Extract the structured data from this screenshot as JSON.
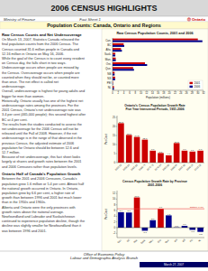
{
  "title": "2006 CENSUS HIGHLIGHTS",
  "subtitles": [
    "Ministry of Finance",
    "Fact Sheet 1",
    "Ⓞ Ontario"
  ],
  "section_title": "Population Counts: Canada, Ontario and Regions",
  "text_sections": [
    {
      "heading": "Raw Census Counts and Net Undercoverage",
      "lines": [
        "On March 13, 2007, Statistics Canada released the",
        "final population counts from the 2006 Census. The",
        "Census counted 31.6 million people in Canada and",
        "12.16 million in Ontario on May 16, 2006.",
        "While the goal of the Census is to count every resident",
        "on Census day, the falls short in two ways.",
        "Undercoverage occurs when people are missed by",
        "the Census. Overcoverage occurs when people are",
        "counted when they should not be, or counted more",
        "than once. The net effect is called net",
        "undercoverage.",
        "Overall, undercoverage is highest for young adults and",
        "bigger for men than women.",
        "Historically, Ontario usually has one of the highest net",
        "undercoverage rates among the provinces. For the",
        "2001 Census, Ontario's net undercoverage rate was",
        "3.4 per cent (465,000 people); this second highest after",
        "BC at 4 per cent.",
        "The results from the studies conducted to assess the",
        "net undercoverage for the 2006 Census will not be",
        "released until the Fall of 2008. However, if the net",
        "undercoverage is in the range of that observed in the",
        "previous Census, the adjusted estimate of 2006",
        "population for Ontario should be between 12.6 and",
        "12.7 million.",
        "Because of net undercoverage, this fact sheet looks",
        "largely at shares and growth rates between the 2001",
        "and 2006 Censuses rather than population levels."
      ]
    },
    {
      "heading": "Ontario Half of Canada's Population Growth",
      "lines": [
        "Between the 2001 and 2006 Censuses, Canada's",
        "population grew 1.6 million or 5.4 per cent. Almost half",
        "the national growth occurred in Ontario. In Ontario,",
        "population grew by 6.6 per cent, a higher rate of",
        "growth than between 1996 and 2001 but much lower",
        "than in the 1950s and 1960s.",
        "Alberta and Ontario were the only provinces with",
        "growth rates above the national average.",
        "Newfoundland and Labrador and Saskatchewan",
        "continued to experience population decline, though the",
        "decline was slightly smaller for Newfoundland than it",
        "was between 1996 and 2001."
      ]
    }
  ],
  "footer": [
    "Office of Economic Policy",
    "Labour and Demographic Analysis Branch"
  ],
  "date": "March 27, 2007",
  "chart_data": [
    {
      "type": "bar",
      "orientation": "horizontal",
      "title": "Raw Census Population Counts, 2001 and 2006",
      "categories": [
        "Can.",
        "BC",
        "Alta.",
        "Sask.",
        "Man.",
        "Ont.",
        "Que.",
        "NB",
        "NS",
        "PEI",
        "NL"
      ],
      "series": [
        {
          "name": "2001",
          "color": "#cc0000",
          "values": [
            30.007094,
            3.907738,
            2.974807,
            0.978933,
            1.119583,
            11.410046,
            7.237479,
            0.729498,
            0.908007,
            0.135294,
            0.51293
          ]
        },
        {
          "name": "2006",
          "color": "#00008b",
          "values": [
            31.612897,
            4.113487,
            3.29035,
            0.968157,
            1.148401,
            12.160282,
            7.546131,
            0.729997,
            0.913462,
            0.134205,
            0.505469
          ]
        }
      ],
      "xlabel": "Population (millions)",
      "xlim": [
        0,
        32
      ],
      "xticks": [
        0,
        2,
        4,
        6,
        8,
        10,
        12,
        14,
        16,
        18,
        20,
        22,
        24,
        26,
        28,
        30,
        32
      ],
      "legend": "lower right"
    },
    {
      "type": "bar",
      "title": "Ontario's Census Population Growth Rate\nFive Year Intercensal Periods, 1951-2006",
      "categories": [
        "1951-56",
        "1956-61",
        "1961-66",
        "1966-71",
        "1971-76",
        "1976-81",
        "1981-86",
        "1986-91",
        "1991-96",
        "1996-01",
        "2001-06"
      ],
      "values": [
        21.8,
        15.3,
        14.2,
        12.7,
        6.6,
        5.3,
        4.0,
        10.8,
        6.6,
        6.1,
        6.6
      ],
      "value_labels": [
        "21.8",
        "15.3",
        "14.2",
        "12.7",
        "6.6",
        "5.3",
        "4.0",
        "10.8",
        "6.6",
        "6.1",
        "6.6"
      ],
      "color": "#cc0000",
      "ylabel": "Per Cent",
      "ylim": [
        0,
        26
      ],
      "yticks": [
        0,
        5,
        10,
        15,
        20,
        25
      ],
      "data_labels": true
    },
    {
      "type": "bar",
      "title": "Census Population Growth Rate by Province\n2001-2006",
      "categories": [
        "Can.",
        "BC",
        "Alta.",
        "Sask.",
        "Man.",
        "Ont.",
        "Que.",
        "NB",
        "NS",
        "PEI",
        "NL"
      ],
      "values": [
        5.4,
        5.3,
        10.6,
        -1.1,
        2.6,
        6.6,
        4.3,
        0.1,
        0.6,
        -0.8,
        -1.5
      ],
      "colors": [
        "#00008b",
        "#00008b",
        "#cc0000",
        "#00008b",
        "#00008b",
        "#cc0000",
        "#00008b",
        "#00008b",
        "#00008b",
        "#00008b",
        "#00008b"
      ],
      "ylabel": "Per Cent",
      "ylim": [
        -3.5,
        13
      ],
      "yticks": [
        -2,
        0,
        2,
        4,
        6,
        8,
        10,
        12
      ],
      "data_labels": true,
      "annotations": [
        {
          "text": "Ontario: 6.6%",
          "y": 6.6,
          "color": "#ee4444"
        }
      ]
    }
  ]
}
